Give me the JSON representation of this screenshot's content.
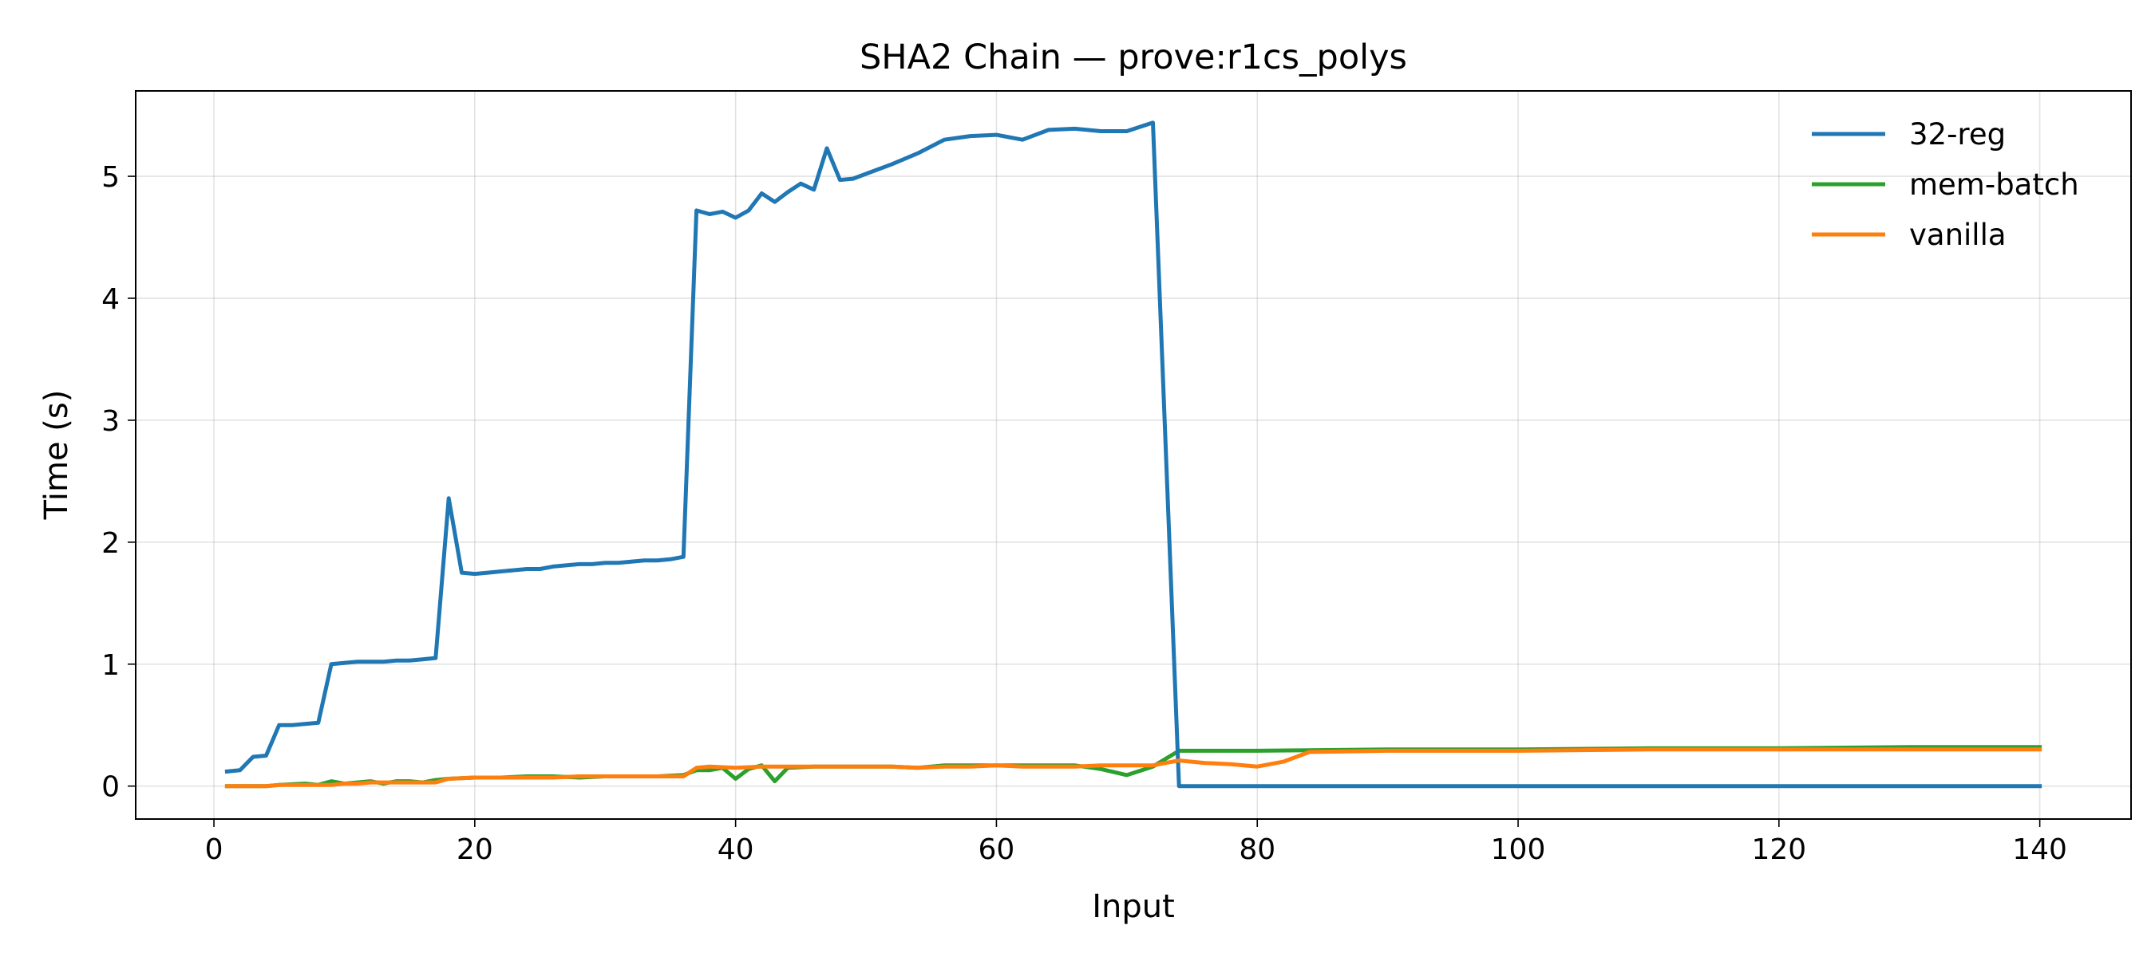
{
  "chart_data": {
    "type": "line",
    "title": "SHA2 Chain — prove:r1cs_polys",
    "xlabel": "Input",
    "ylabel": "Time (s)",
    "xlim": [
      -6,
      147
    ],
    "ylim": [
      -0.27,
      5.7
    ],
    "xticks": [
      0,
      20,
      40,
      60,
      80,
      100,
      120,
      140
    ],
    "yticks": [
      0,
      1,
      2,
      3,
      4,
      5
    ],
    "grid": true,
    "legend_position": "top-right",
    "series": [
      {
        "name": "32-reg",
        "color": "#1f77b4",
        "x": [
          1,
          2,
          3,
          4,
          5,
          6,
          7,
          8,
          9,
          10,
          11,
          12,
          13,
          14,
          15,
          16,
          17,
          18,
          19,
          20,
          21,
          22,
          23,
          24,
          25,
          26,
          27,
          28,
          29,
          30,
          31,
          32,
          33,
          34,
          35,
          36,
          37,
          38,
          39,
          40,
          41,
          42,
          43,
          44,
          45,
          46,
          47,
          48,
          49,
          50,
          52,
          54,
          56,
          58,
          60,
          62,
          64,
          66,
          68,
          70,
          72,
          74,
          76,
          80,
          90,
          100,
          110,
          120,
          130,
          140
        ],
        "y": [
          0.12,
          0.13,
          0.24,
          0.25,
          0.5,
          0.5,
          0.51,
          0.52,
          1.0,
          1.01,
          1.02,
          1.02,
          1.02,
          1.03,
          1.03,
          1.04,
          1.05,
          2.36,
          1.75,
          1.74,
          1.75,
          1.76,
          1.77,
          1.78,
          1.78,
          1.8,
          1.81,
          1.82,
          1.82,
          1.83,
          1.83,
          1.84,
          1.85,
          1.85,
          1.86,
          1.88,
          4.72,
          4.69,
          4.71,
          4.66,
          4.72,
          4.86,
          4.79,
          4.87,
          4.94,
          4.89,
          5.23,
          4.97,
          4.98,
          5.02,
          5.1,
          5.19,
          5.3,
          5.33,
          5.34,
          5.3,
          5.38,
          5.39,
          5.37,
          5.37,
          5.44,
          0.0,
          0.0,
          0.0,
          0.0,
          0.0,
          0.0,
          0.0,
          0.0,
          0.0
        ]
      },
      {
        "name": "mem-batch",
        "color": "#2ca02c",
        "x": [
          1,
          3,
          4,
          5,
          7,
          8,
          9,
          10,
          11,
          12,
          13,
          14,
          15,
          16,
          17,
          18,
          20,
          22,
          24,
          26,
          28,
          30,
          32,
          34,
          36,
          37,
          38,
          39,
          40,
          41,
          42,
          43,
          44,
          46,
          48,
          50,
          52,
          54,
          56,
          58,
          60,
          62,
          64,
          66,
          68,
          70,
          72,
          74,
          80,
          90,
          100,
          110,
          120,
          130,
          140
        ],
        "y": [
          0.0,
          0.0,
          0.0,
          0.01,
          0.02,
          0.01,
          0.04,
          0.02,
          0.03,
          0.04,
          0.02,
          0.04,
          0.04,
          0.03,
          0.05,
          0.06,
          0.07,
          0.07,
          0.08,
          0.08,
          0.07,
          0.08,
          0.08,
          0.08,
          0.09,
          0.13,
          0.13,
          0.15,
          0.06,
          0.14,
          0.17,
          0.04,
          0.15,
          0.16,
          0.16,
          0.16,
          0.16,
          0.15,
          0.17,
          0.17,
          0.17,
          0.17,
          0.17,
          0.17,
          0.14,
          0.09,
          0.16,
          0.29,
          0.29,
          0.3,
          0.3,
          0.31,
          0.31,
          0.32,
          0.32
        ]
      },
      {
        "name": "vanilla",
        "color": "#ff7f0e",
        "x": [
          1,
          2,
          3,
          4,
          5,
          6,
          7,
          8,
          9,
          10,
          11,
          12,
          13,
          14,
          15,
          16,
          17,
          18,
          20,
          22,
          24,
          26,
          28,
          30,
          32,
          34,
          36,
          37,
          38,
          40,
          42,
          44,
          46,
          48,
          50,
          52,
          54,
          56,
          58,
          60,
          62,
          64,
          66,
          68,
          70,
          72,
          74,
          76,
          78,
          80,
          82,
          84,
          90,
          100,
          110,
          120,
          130,
          140
        ],
        "y": [
          0.0,
          0.0,
          0.0,
          0.0,
          0.01,
          0.01,
          0.01,
          0.01,
          0.01,
          0.02,
          0.02,
          0.03,
          0.03,
          0.03,
          0.03,
          0.03,
          0.03,
          0.06,
          0.07,
          0.07,
          0.07,
          0.07,
          0.08,
          0.08,
          0.08,
          0.08,
          0.08,
          0.15,
          0.16,
          0.15,
          0.16,
          0.16,
          0.16,
          0.16,
          0.16,
          0.16,
          0.15,
          0.16,
          0.16,
          0.17,
          0.16,
          0.16,
          0.16,
          0.17,
          0.17,
          0.17,
          0.21,
          0.19,
          0.18,
          0.16,
          0.2,
          0.28,
          0.29,
          0.29,
          0.3,
          0.3,
          0.3,
          0.3
        ]
      }
    ]
  }
}
